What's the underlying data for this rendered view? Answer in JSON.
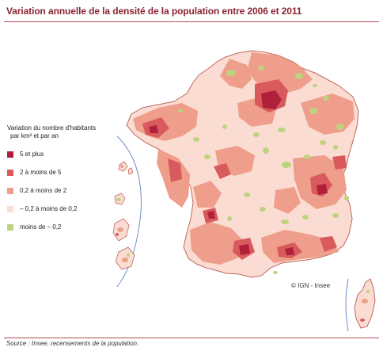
{
  "title": "Variation annuelle de la densité de la population entre 2006 et 2011",
  "legend": {
    "heading_line1": "Variation du nombre d'habitants",
    "heading_line2": "par km² et par an",
    "classes": [
      {
        "label": "5 et plus",
        "color": "#b0203a"
      },
      {
        "label": "2 à moins de 5",
        "color": "#d95a5d"
      },
      {
        "label": "0,2 à moins de 2",
        "color": "#ee9e8a"
      },
      {
        "label": "– 0,2 à moins de 0,2",
        "color": "#fbdcd3"
      },
      {
        "label": "moins de – 0,2",
        "color": "#bdd37f"
      }
    ]
  },
  "credit": "© IGN - Insee",
  "source": "Source : Insee, recensements de la population."
}
